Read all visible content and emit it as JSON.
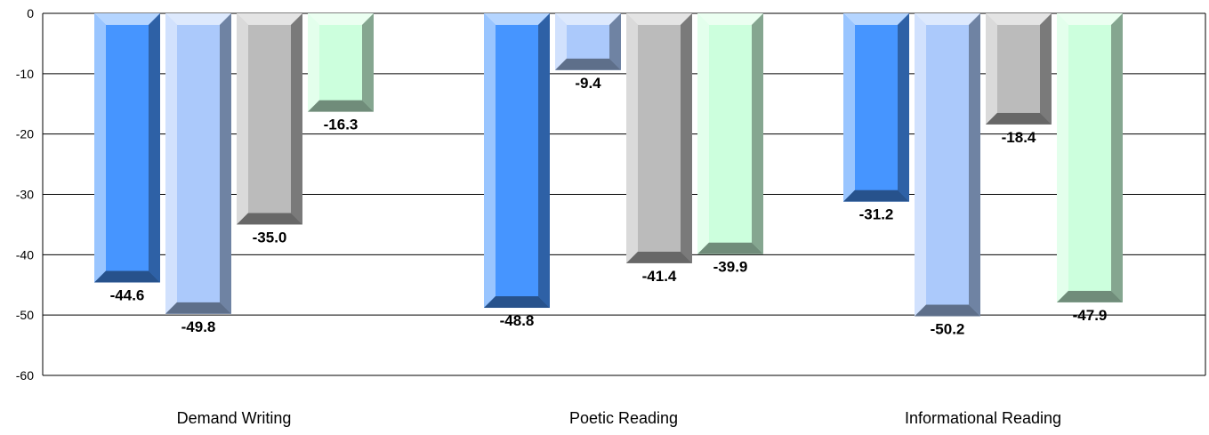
{
  "chart_data": {
    "type": "bar",
    "style": "3d-beveled",
    "categories": [
      "Demand Writing",
      "Poetic Reading",
      "Informational Reading"
    ],
    "series": [
      {
        "values": [
          -44.6,
          -48.8,
          -31.2
        ],
        "color": "#4695FF"
      },
      {
        "values": [
          -49.8,
          -9.4,
          -50.2
        ],
        "color": "#ABC9FB"
      },
      {
        "values": [
          -35.0,
          -41.4,
          -18.4
        ],
        "color": "#BBBBBB"
      },
      {
        "values": [
          -16.3,
          -39.9,
          -47.9
        ],
        "color": "#CCFFDD"
      }
    ],
    "data_labels": [
      [
        "-44.6",
        "-48.8",
        "-31.2"
      ],
      [
        "-49.8",
        "-9.4",
        "-50.2"
      ],
      [
        "-35.0",
        "-41.4",
        "-18.4"
      ],
      [
        "-16.3",
        "-39.9",
        "-47.9"
      ]
    ],
    "yticks": [
      0,
      -10,
      -20,
      -30,
      -40,
      -50,
      -60
    ],
    "ytick_labels": [
      "0",
      "-10",
      "-20",
      "-30",
      "-40",
      "-50",
      "-60"
    ],
    "ylim": [
      -60,
      0
    ],
    "grid": true,
    "legend": false,
    "title": "",
    "xlabel": "",
    "ylabel": ""
  }
}
